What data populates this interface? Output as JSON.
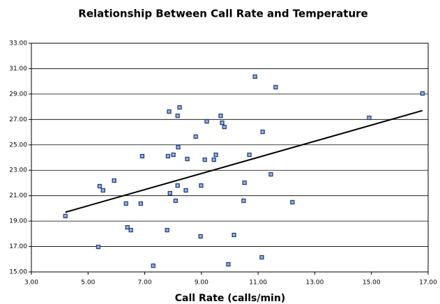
{
  "chart_data": {
    "type": "scatter",
    "title": "Relationship Between Call Rate and Temperature",
    "x_label": "Call Rate (calls/min)",
    "x": [
      4.2,
      5.41,
      5.53,
      5.92,
      5.36,
      6.34,
      6.39,
      6.51,
      6.86,
      6.91,
      7.3,
      7.79,
      7.82,
      7.86,
      7.89,
      8.01,
      8.09,
      8.16,
      8.16,
      8.18,
      8.23,
      8.45,
      8.5,
      8.8,
      8.97,
      8.99,
      9.12,
      9.19,
      9.44,
      9.51,
      9.68,
      9.73,
      9.81,
      9.95,
      10.15,
      10.49,
      10.52,
      10.69,
      10.89,
      11.13,
      11.16,
      11.45,
      11.62,
      12.21,
      14.92,
      16.8
    ],
    "y": [
      19.4,
      21.75,
      21.42,
      22.19,
      16.97,
      20.38,
      18.51,
      18.29,
      20.38,
      24.11,
      15.49,
      18.29,
      24.11,
      27.62,
      21.2,
      24.22,
      20.6,
      27.29,
      21.8,
      24.82,
      27.95,
      21.42,
      23.89,
      25.65,
      17.8,
      21.8,
      23.83,
      26.85,
      23.83,
      24.22,
      27.29,
      26.74,
      26.41,
      15.6,
      17.91,
      20.6,
      22.02,
      24.22,
      30.37,
      16.15,
      26.03,
      22.68,
      29.54,
      20.49,
      27.13,
      29.05
    ],
    "color": "#1f3f86",
    "trendline": {
      "x": [
        4.2,
        16.8
      ],
      "y": [
        19.7,
        27.7
      ],
      "color": "#000000"
    },
    "xlim": [
      3,
      17
    ],
    "ylim": [
      15,
      33
    ],
    "xticks": [
      {
        "value": 3,
        "label": "3.00"
      },
      {
        "value": 5,
        "label": "5.00"
      },
      {
        "value": 7,
        "label": "7.00"
      },
      {
        "value": 9,
        "label": "9.00"
      },
      {
        "value": 11,
        "label": "11.00"
      },
      {
        "value": 13,
        "label": "13.00"
      },
      {
        "value": 15,
        "label": "15.00"
      },
      {
        "value": 17,
        "label": "17.00"
      }
    ],
    "yticks": [
      {
        "value": 15,
        "label": "15.00"
      },
      {
        "value": 17,
        "label": "17.00"
      },
      {
        "value": 19,
        "label": "19.00"
      },
      {
        "value": 21,
        "label": "21.00"
      },
      {
        "value": 23,
        "label": "23.00"
      },
      {
        "value": 25,
        "label": "25.00"
      },
      {
        "value": 27,
        "label": "27.00"
      },
      {
        "value": 29,
        "label": "29.00"
      },
      {
        "value": 31,
        "label": "31.00"
      },
      {
        "value": 33,
        "label": "33.00"
      }
    ],
    "grid": true
  }
}
